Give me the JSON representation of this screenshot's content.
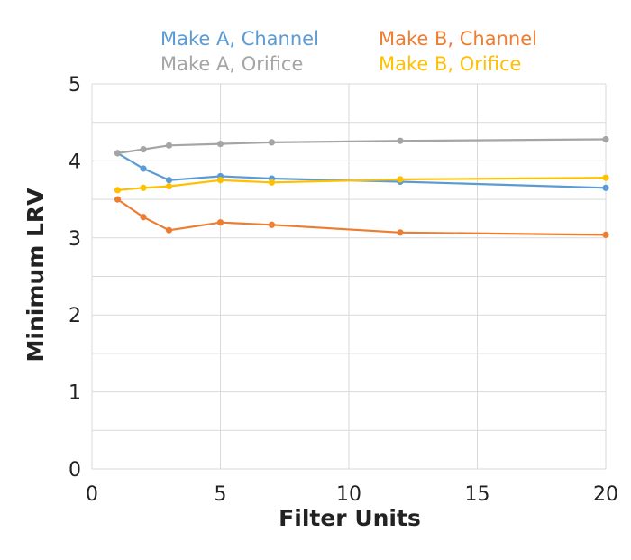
{
  "chart_data": {
    "type": "line",
    "xlabel": "Filter Units",
    "ylabel": "Minimum LRV",
    "xlim": [
      0,
      20
    ],
    "ylim": [
      0,
      5
    ],
    "xticks": [
      0,
      5,
      10,
      15,
      20
    ],
    "yticks": [
      0,
      1,
      2,
      3,
      4,
      5
    ],
    "grid": true,
    "legend_position": "top",
    "series": [
      {
        "name": "Make A, Channel",
        "color": "#5b9bd5",
        "points": [
          [
            1,
            4.1
          ],
          [
            2,
            3.9
          ],
          [
            3,
            3.75
          ],
          [
            5,
            3.8
          ],
          [
            7,
            3.77
          ],
          [
            12,
            3.73
          ],
          [
            20,
            3.65
          ]
        ]
      },
      {
        "name": "Make B, Channel",
        "color": "#ed7d31",
        "points": [
          [
            1,
            3.5
          ],
          [
            2,
            3.27
          ],
          [
            3,
            3.1
          ],
          [
            5,
            3.2
          ],
          [
            7,
            3.17
          ],
          [
            12,
            3.07
          ],
          [
            20,
            3.04
          ]
        ]
      },
      {
        "name": "Make A, Orifice",
        "color": "#a5a5a5",
        "points": [
          [
            1,
            4.1
          ],
          [
            2,
            4.15
          ],
          [
            3,
            4.2
          ],
          [
            5,
            4.22
          ],
          [
            7,
            4.24
          ],
          [
            12,
            4.26
          ],
          [
            20,
            4.28
          ]
        ]
      },
      {
        "name": "Make B, Orifice",
        "color": "#ffc000",
        "points": [
          [
            1,
            3.62
          ],
          [
            2,
            3.65
          ],
          [
            3,
            3.67
          ],
          [
            5,
            3.75
          ],
          [
            7,
            3.72
          ],
          [
            12,
            3.76
          ],
          [
            20,
            3.78
          ]
        ]
      }
    ]
  }
}
